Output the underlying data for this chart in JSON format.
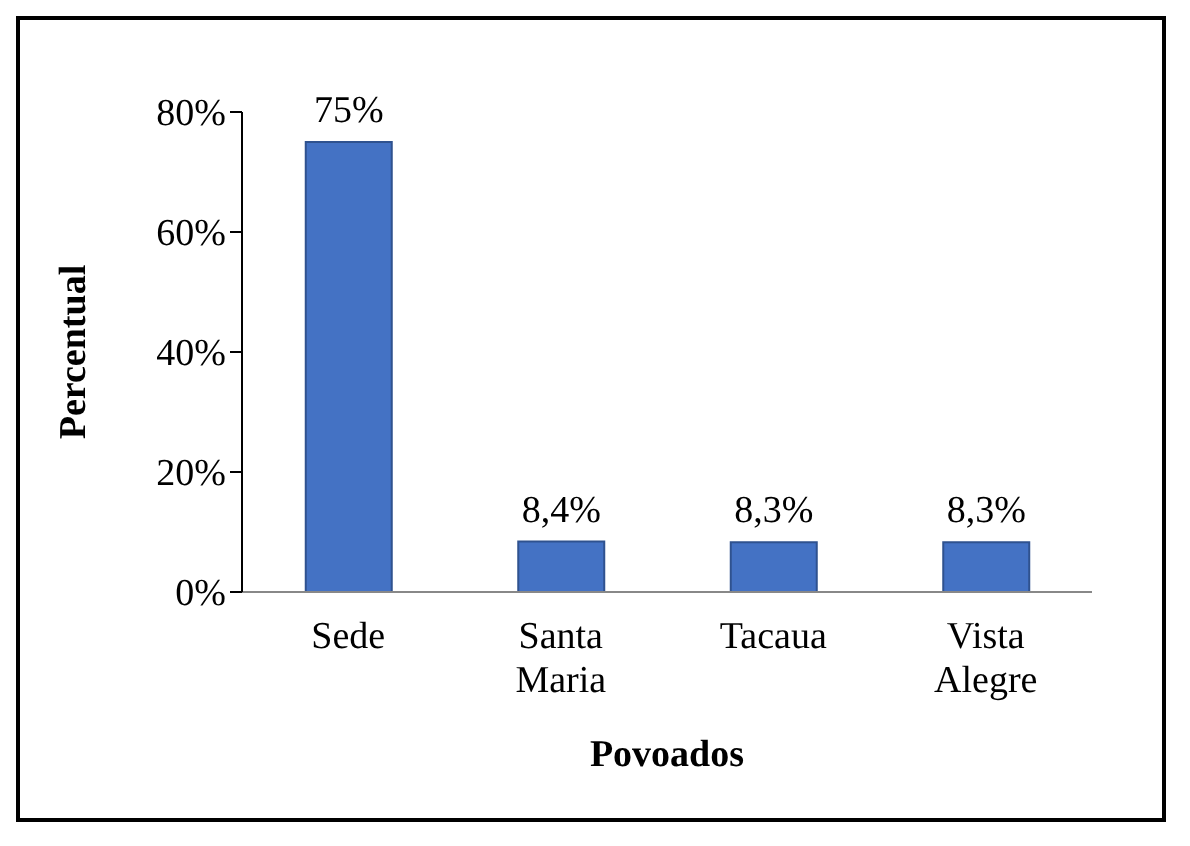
{
  "chart_data": {
    "type": "bar",
    "xlabel": "Povoados",
    "ylabel": "Percentual",
    "categories": [
      "Sede",
      "Santa Maria",
      "Tacaua",
      "Vista Alegre"
    ],
    "values": [
      75,
      8.4,
      8.3,
      8.3
    ],
    "value_labels": [
      "75%",
      "8,4%",
      "8,3%",
      "8,3%"
    ],
    "color": "#4472c4",
    "ylim": [
      0,
      80
    ],
    "yticks": [
      {
        "value": 0,
        "label": "0%"
      },
      {
        "value": 20,
        "label": "20%"
      },
      {
        "value": 40,
        "label": "40%"
      },
      {
        "value": 60,
        "label": "60%"
      },
      {
        "value": 80,
        "label": "80%"
      }
    ],
    "grid": false,
    "legend": false
  }
}
